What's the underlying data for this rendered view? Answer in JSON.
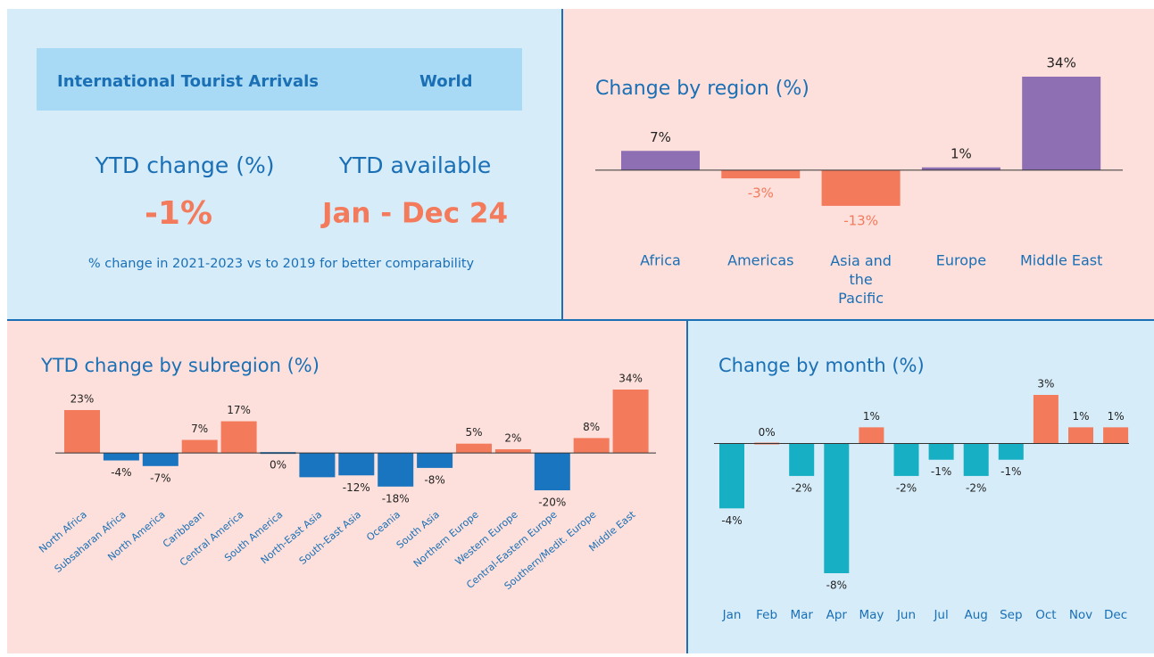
{
  "summary": {
    "header_title": "International Tourist Arrivals",
    "header_region": "World",
    "ytd_change_label": "YTD change (%)",
    "ytd_change_value": "-1%",
    "ytd_available_label": "YTD available",
    "ytd_available_value": "Jan - Dec 24",
    "note": "% change in 2021-2023 vs to 2019 for better comparability"
  },
  "chart_data": [
    {
      "type": "bar",
      "title": "Change by region (%)",
      "categories": [
        "Africa",
        "Americas",
        "Asia and the Pacific",
        "Europe",
        "Middle East"
      ],
      "values": [
        7,
        -3,
        -13,
        1,
        34
      ],
      "value_labels": [
        "7%",
        "-3%",
        "-13%",
        "1%",
        "34%"
      ],
      "positive_color": "#8e6fb4",
      "negative_color": "#f47a5c",
      "negative_label_color": "#f47a5c",
      "ylim": [
        -14,
        34
      ]
    },
    {
      "type": "bar",
      "title": "YTD change by subregion (%)",
      "categories": [
        "North Africa",
        "Subsaharan Africa",
        "North America",
        "Caribbean",
        "Central America",
        "South America",
        "North-East Asia",
        "South-East Asia",
        "Oceania",
        "South Asia",
        "Northern Europe",
        "Western Europe",
        "Central-Eastern Europe",
        "Southern/Medit. Europe",
        "Middle East"
      ],
      "values": [
        23,
        -4,
        -7,
        7,
        17,
        0,
        -13,
        -12,
        -18,
        -8,
        5,
        2,
        -20,
        8,
        34
      ],
      "value_labels": [
        "23%",
        "-4%",
        "-7%",
        "7%",
        "17%",
        "0%",
        null,
        "-12%",
        "-18%",
        "-8%",
        "5%",
        "2%",
        "-20%",
        "8%",
        "34%"
      ],
      "positive_color": "#f47a5c",
      "negative_color": "#1a75c0",
      "ylim": [
        -20,
        34
      ]
    },
    {
      "type": "bar",
      "title": "Change by month (%)",
      "categories": [
        "Jan",
        "Feb",
        "Mar",
        "Apr",
        "May",
        "Jun",
        "Jul",
        "Aug",
        "Sep",
        "Oct",
        "Nov",
        "Dec"
      ],
      "values": [
        -4,
        0,
        -2,
        -8,
        1,
        -2,
        -1,
        -2,
        -1,
        3,
        1,
        1
      ],
      "value_labels": [
        "-4%",
        "0%",
        "-2%",
        "-8%",
        "1%",
        "-2%",
        "-1%",
        "-2%",
        "-1%",
        "3%",
        "1%",
        "1%"
      ],
      "positive_color": "#f47a5c",
      "negative_color": "#17afc3",
      "ylim": [
        -8,
        3
      ]
    }
  ]
}
